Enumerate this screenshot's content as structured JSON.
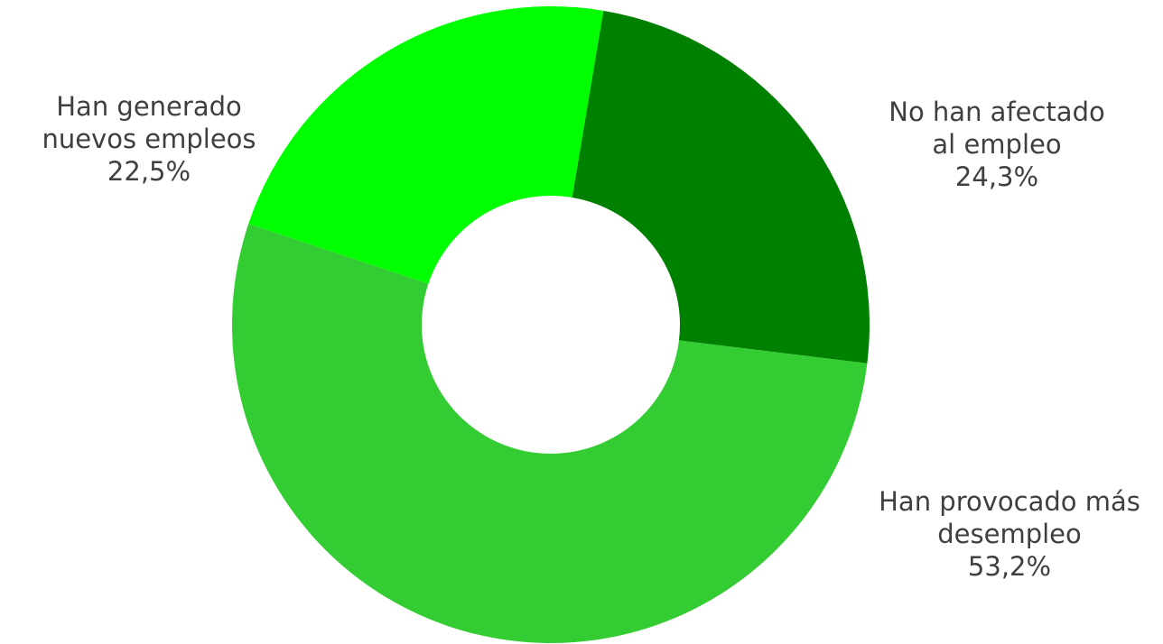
{
  "chart_data": {
    "type": "pie",
    "style": "donut",
    "title": "",
    "slices": [
      {
        "label_lines": [
          "No han afectado",
          "al empleo"
        ],
        "value": 24.3,
        "value_text": "24,3%",
        "color": "#008000"
      },
      {
        "label_lines": [
          "Han provocado más",
          "desempleo"
        ],
        "value": 53.2,
        "value_text": "53,2%",
        "color": "#33CC33"
      },
      {
        "label_lines": [
          "Han generado",
          "nuevos empleos"
        ],
        "value": 22.5,
        "value_text": "22,5%",
        "color": "#00FF00"
      }
    ],
    "legend": "none"
  }
}
